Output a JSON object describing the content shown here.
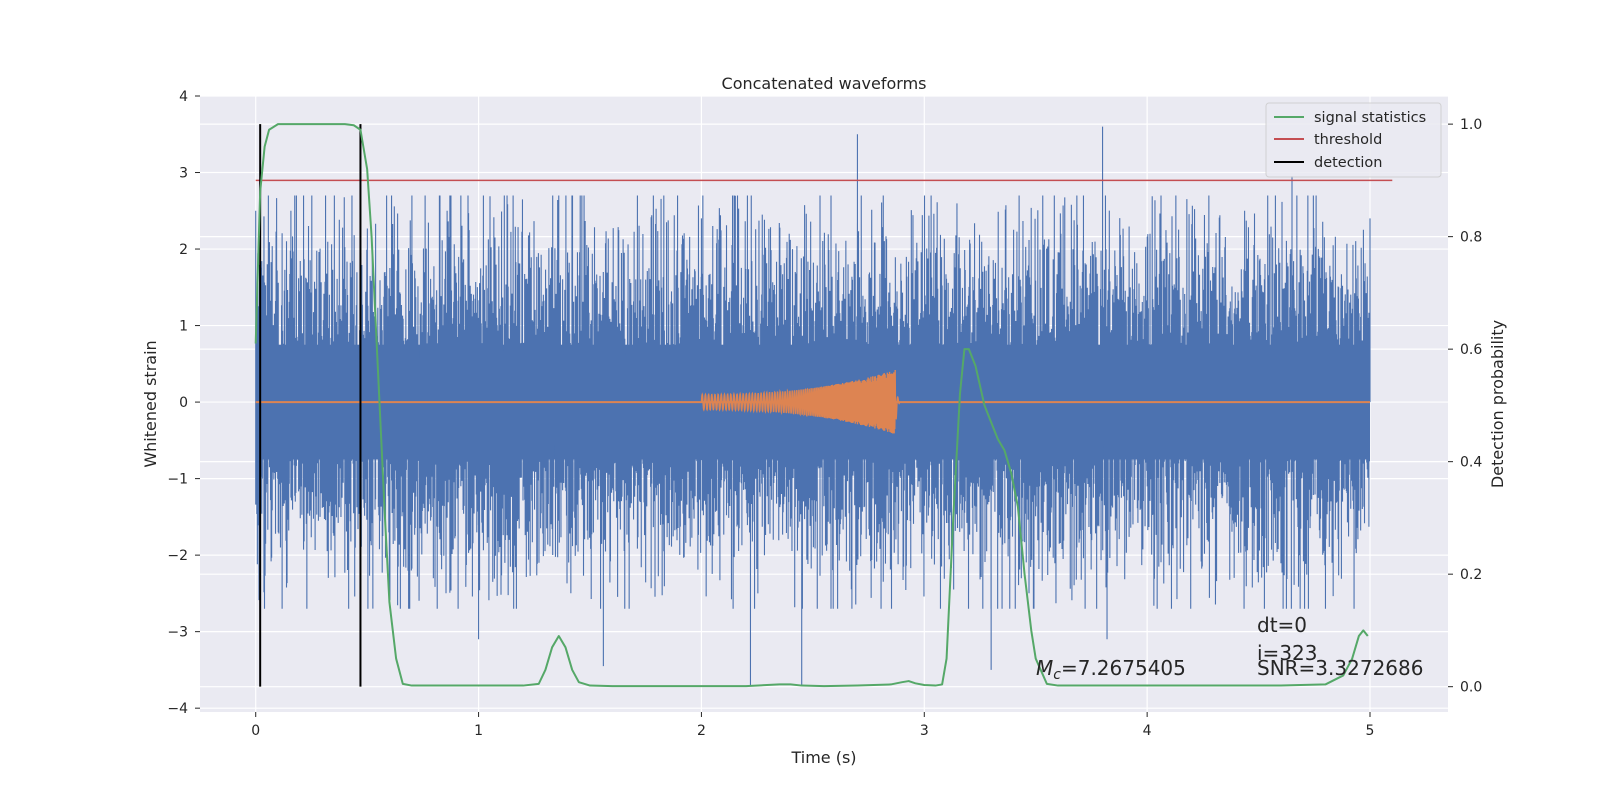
{
  "chart_data": {
    "type": "line",
    "title": "Concatenated waveforms",
    "xlabel": "Time (s)",
    "ylabel_left": "Whitened strain",
    "ylabel_right": "Detection probability",
    "xlim": [
      -0.25,
      5.35
    ],
    "ylim_left": [
      -4.05,
      4.0
    ],
    "ylim_right": [
      -0.045,
      1.05
    ],
    "x_ticks": [
      0,
      1,
      2,
      3,
      4,
      5
    ],
    "x_tick_labels": [
      "0",
      "1",
      "2",
      "3",
      "4",
      "5"
    ],
    "y_ticks_left": [
      -4,
      -3,
      -2,
      -1,
      0,
      1,
      2,
      3,
      4
    ],
    "y_tick_labels_left": [
      "−4",
      "−3",
      "−2",
      "−1",
      "0",
      "1",
      "2",
      "3",
      "4"
    ],
    "y_ticks_right": [
      0.0,
      0.2,
      0.4,
      0.6,
      0.8,
      1.0
    ],
    "y_tick_labels_right": [
      "0.0",
      "0.2",
      "0.4",
      "0.6",
      "0.8",
      "1.0"
    ],
    "grid": true,
    "legend_placement": "top-right",
    "colors": {
      "strain": "#4c72b0",
      "waveform": "#dd8452",
      "signal_statistics": "#55a868",
      "threshold": "#c44e52",
      "detection": "#000000",
      "background": "#eaeaf2",
      "grid": "#ffffff"
    },
    "series": [
      {
        "name": "signal statistics",
        "axis": "right",
        "x": [
          0.0,
          0.02,
          0.04,
          0.06,
          0.1,
          0.2,
          0.3,
          0.4,
          0.44,
          0.47,
          0.5,
          0.52,
          0.55,
          0.58,
          0.6,
          0.63,
          0.66,
          0.7,
          0.8,
          0.9,
          1.0,
          1.1,
          1.2,
          1.27,
          1.3,
          1.33,
          1.36,
          1.39,
          1.42,
          1.45,
          1.5,
          1.6,
          1.8,
          2.0,
          2.2,
          2.35,
          2.4,
          2.45,
          2.55,
          2.7,
          2.85,
          2.9,
          2.93,
          2.96,
          3.0,
          3.05,
          3.08,
          3.1,
          3.13,
          3.16,
          3.18,
          3.2,
          3.23,
          3.27,
          3.3,
          3.33,
          3.36,
          3.39,
          3.42,
          3.45,
          3.48,
          3.5,
          3.55,
          3.6,
          3.8,
          4.0,
          4.2,
          4.4,
          4.6,
          4.8,
          4.88,
          4.92,
          4.95,
          4.97,
          4.99
        ],
        "values": [
          0.61,
          0.88,
          0.96,
          0.99,
          1.0,
          1.0,
          1.0,
          1.0,
          0.998,
          0.99,
          0.92,
          0.8,
          0.55,
          0.3,
          0.15,
          0.05,
          0.005,
          0.002,
          0.002,
          0.002,
          0.002,
          0.002,
          0.002,
          0.005,
          0.03,
          0.07,
          0.09,
          0.07,
          0.03,
          0.008,
          0.002,
          0.001,
          0.001,
          0.001,
          0.001,
          0.004,
          0.004,
          0.002,
          0.001,
          0.002,
          0.004,
          0.008,
          0.01,
          0.006,
          0.003,
          0.002,
          0.004,
          0.05,
          0.3,
          0.52,
          0.6,
          0.6,
          0.57,
          0.5,
          0.47,
          0.44,
          0.42,
          0.38,
          0.32,
          0.2,
          0.1,
          0.05,
          0.005,
          0.002,
          0.002,
          0.002,
          0.002,
          0.002,
          0.002,
          0.004,
          0.02,
          0.05,
          0.09,
          0.1,
          0.09
        ]
      },
      {
        "name": "threshold",
        "axis": "right",
        "x": [
          0.0,
          5.1
        ],
        "values": [
          0.9,
          0.9
        ]
      },
      {
        "name": "detection",
        "axis": "right",
        "x": [
          0.02,
          0.47
        ],
        "ymin": 0.0,
        "ymax": 1.0
      },
      {
        "axis": "left",
        "x_range": [
          0.0,
          5.0
        ],
        "band": [
          -0.75,
          0.75
        ],
        "peaks_abs_max": [
          3.5,
          3.62
        ],
        "peaks_note_points": [
          [
            0.0,
            2.5
          ],
          [
            0.02,
            -1.8
          ],
          [
            0.58,
            1.7
          ],
          [
            0.6,
            -2.5
          ],
          [
            1.0,
            -3.1
          ],
          [
            1.56,
            -3.45
          ],
          [
            2.0,
            2.4
          ],
          [
            2.22,
            -3.7
          ],
          [
            2.45,
            -3.7
          ],
          [
            2.7,
            3.5
          ],
          [
            3.3,
            -3.5
          ],
          [
            3.8,
            3.6
          ],
          [
            3.82,
            -3.1
          ],
          [
            4.65,
            2.95
          ],
          [
            5.0,
            2.4
          ]
        ]
      },
      {
        "axis": "left",
        "x_range": [
          2.0,
          2.89
        ],
        "amplitude_start": 0.1,
        "amplitude_peak": 0.42,
        "peak_time": 2.87
      }
    ],
    "annotations": [
      {
        "text": "dt=0"
      },
      {
        "text": "i=323"
      },
      {
        "text_prefix": "M",
        "text_sub": "c",
        "text_suffix": "=7.2675405"
      },
      {
        "text": "SNR=3.3272686"
      }
    ]
  }
}
